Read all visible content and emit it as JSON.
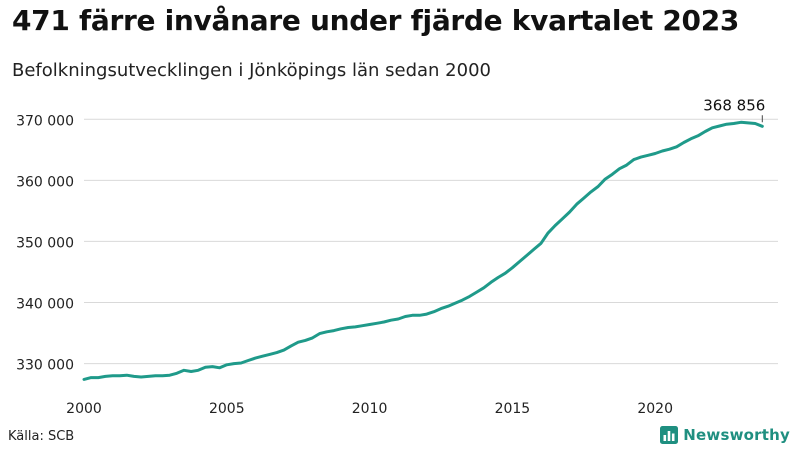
{
  "title": "471 färre invånare under fjärde kvartalet 2023",
  "subtitle": "Befolkningsutvecklingen i Jönköpings län sedan 2000",
  "source": "Källa: SCB",
  "brand": {
    "name": "Newsworthy",
    "icon": "bar-chart-logo-icon"
  },
  "colors": {
    "line": "#1f9a8a",
    "grid": "#d9d9d9",
    "brand": "#1f8f80"
  },
  "chart_data": {
    "type": "line",
    "title": "471 färre invånare under fjärde kvartalet 2023",
    "subtitle": "Befolkningsutvecklingen i Jönköpings län sedan 2000",
    "xlabel": "",
    "ylabel": "",
    "xlim": [
      2000,
      2024.3
    ],
    "ylim": [
      326000,
      372500
    ],
    "grid": true,
    "x_ticks": [
      2000,
      2005,
      2010,
      2015,
      2020
    ],
    "x_tick_labels": [
      "2000",
      "2005",
      "2010",
      "2015",
      "2020"
    ],
    "y_ticks": [
      330000,
      340000,
      350000,
      360000,
      370000
    ],
    "y_tick_labels": [
      "330 000",
      "340 000",
      "350 000",
      "360 000",
      "370 000"
    ],
    "annotation": {
      "label": "368 856",
      "x": 2023.75,
      "y": 368856
    },
    "series": [
      {
        "x": [
          2000.0,
          2000.25,
          2000.5,
          2000.75,
          2001.0,
          2001.25,
          2001.5,
          2001.75,
          2002.0,
          2002.25,
          2002.5,
          2002.75,
          2003.0,
          2003.25,
          2003.5,
          2003.75,
          2004.0,
          2004.25,
          2004.5,
          2004.75,
          2005.0,
          2005.25,
          2005.5,
          2005.75,
          2006.0,
          2006.25,
          2006.5,
          2006.75,
          2007.0,
          2007.25,
          2007.5,
          2007.75,
          2008.0,
          2008.25,
          2008.5,
          2008.75,
          2009.0,
          2009.25,
          2009.5,
          2009.75,
          2010.0,
          2010.25,
          2010.5,
          2010.75,
          2011.0,
          2011.25,
          2011.5,
          2011.75,
          2012.0,
          2012.25,
          2012.5,
          2012.75,
          2013.0,
          2013.25,
          2013.5,
          2013.75,
          2014.0,
          2014.25,
          2014.5,
          2014.75,
          2015.0,
          2015.25,
          2015.5,
          2015.75,
          2016.0,
          2016.25,
          2016.5,
          2016.75,
          2017.0,
          2017.25,
          2017.5,
          2017.75,
          2018.0,
          2018.25,
          2018.5,
          2018.75,
          2019.0,
          2019.25,
          2019.5,
          2019.75,
          2020.0,
          2020.25,
          2020.5,
          2020.75,
          2021.0,
          2021.25,
          2021.5,
          2021.75,
          2022.0,
          2022.25,
          2022.5,
          2022.75,
          2023.0,
          2023.25,
          2023.5,
          2023.75
        ],
        "y": [
          327400,
          327700,
          327700,
          327900,
          328000,
          328000,
          328100,
          327900,
          327800,
          327900,
          328000,
          328000,
          328100,
          328400,
          328900,
          328700,
          328900,
          329400,
          329500,
          329300,
          329800,
          330000,
          330100,
          330500,
          330900,
          331200,
          331500,
          331800,
          332200,
          332900,
          333500,
          333800,
          334200,
          334900,
          335200,
          335400,
          335700,
          335900,
          336000,
          336200,
          336400,
          336600,
          336800,
          337100,
          337300,
          337700,
          337900,
          337900,
          338100,
          338500,
          339000,
          339400,
          339900,
          340400,
          341000,
          341700,
          342400,
          343300,
          344100,
          344800,
          345700,
          346700,
          347700,
          348700,
          349700,
          351400,
          352600,
          353700,
          354800,
          356100,
          357100,
          358100,
          359000,
          360200,
          361000,
          361900,
          362500,
          363400,
          363800,
          364100,
          364400,
          364800,
          365100,
          365500,
          366200,
          366800,
          367300,
          368000,
          368600,
          368900,
          369200,
          369300,
          369500,
          369400,
          369300,
          368856
        ]
      }
    ]
  }
}
